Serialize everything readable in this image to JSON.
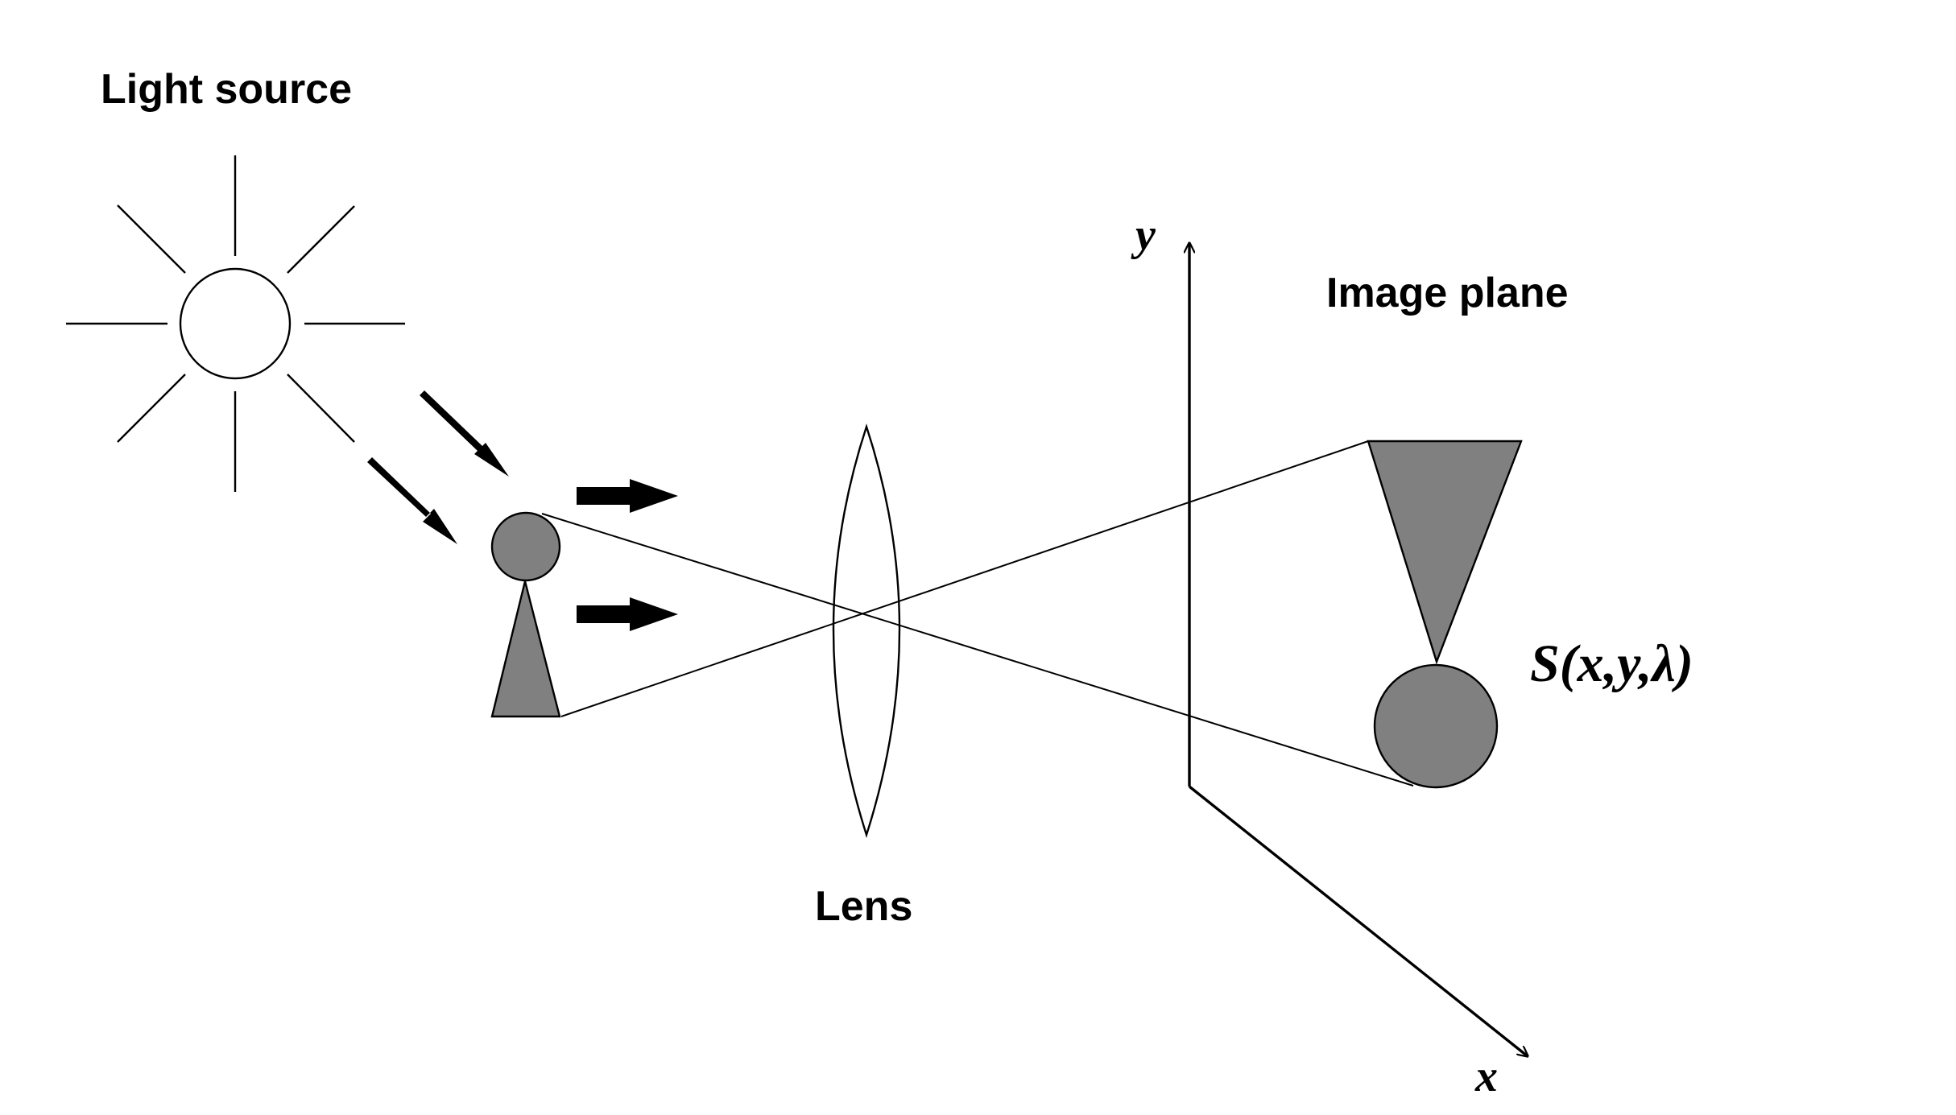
{
  "labels": {
    "light_source": "Light source",
    "image_plane": "Image plane",
    "lens": "Lens",
    "axis_y": "y",
    "axis_x": "x",
    "irradiance": "S(x,y,λ)"
  },
  "colors": {
    "object_fill": "#808080",
    "stroke": "#000000",
    "background": "#ffffff"
  }
}
